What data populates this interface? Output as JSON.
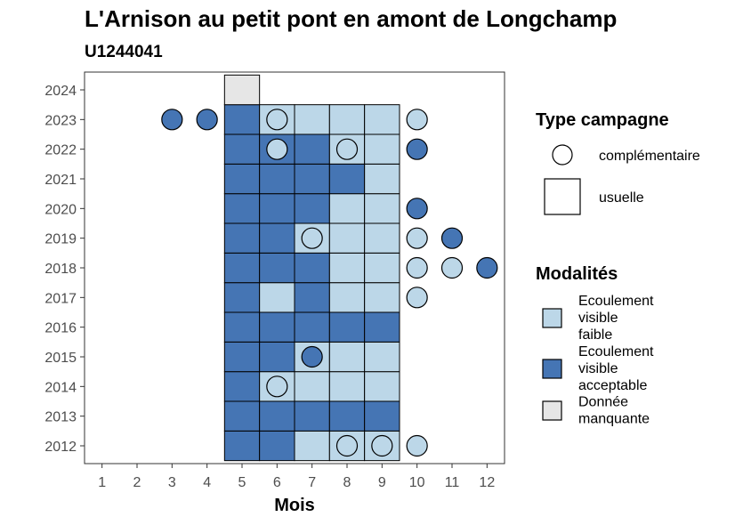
{
  "chart_data": {
    "type": "heatmap",
    "title": "L'Arnison au petit pont en amont de Longchamp",
    "subtitle": "U1244041",
    "xlabel": "Mois",
    "ylabel": "",
    "x_ticks": [
      "1",
      "2",
      "3",
      "4",
      "5",
      "6",
      "7",
      "8",
      "9",
      "10",
      "11",
      "12"
    ],
    "y_ticks": [
      "2012",
      "2013",
      "2014",
      "2015",
      "2016",
      "2017",
      "2018",
      "2019",
      "2020",
      "2021",
      "2022",
      "2023",
      "2024"
    ],
    "xlim": [
      0.5,
      12.5
    ],
    "ylim": [
      2011.4,
      2024.6
    ],
    "grid": false,
    "legend_position": "right",
    "colors": {
      "faible": "#bcd7e8",
      "acceptable": "#4575b4",
      "manquante": "#e6e6e6"
    },
    "legend_type": {
      "title": "Type campagne",
      "items": [
        {
          "label": "complémentaire",
          "shape": "circle"
        },
        {
          "label": "usuelle",
          "shape": "square"
        }
      ]
    },
    "legend_modalites": {
      "title": "Modalités",
      "items": [
        {
          "lines": [
            "Ecoulement",
            "visible",
            "faible"
          ],
          "key": "faible"
        },
        {
          "lines": [
            "Ecoulement",
            "visible",
            "acceptable"
          ],
          "key": "acceptable"
        },
        {
          "lines": [
            "Donnée",
            "manquante"
          ],
          "key": "manquante"
        }
      ]
    },
    "usuelle": [
      {
        "year": 2012,
        "months": [
          "acceptable",
          "acceptable",
          "faible",
          "faible",
          "faible"
        ]
      },
      {
        "year": 2013,
        "months": [
          "acceptable",
          "acceptable",
          "acceptable",
          "acceptable",
          "acceptable"
        ]
      },
      {
        "year": 2014,
        "months": [
          "acceptable",
          "faible",
          "faible",
          "faible",
          "faible"
        ]
      },
      {
        "year": 2015,
        "months": [
          "acceptable",
          "acceptable",
          "faible",
          "faible",
          "faible"
        ]
      },
      {
        "year": 2016,
        "months": [
          "acceptable",
          "acceptable",
          "acceptable",
          "acceptable",
          "acceptable"
        ]
      },
      {
        "year": 2017,
        "months": [
          "acceptable",
          "faible",
          "acceptable",
          "faible",
          "faible"
        ]
      },
      {
        "year": 2018,
        "months": [
          "acceptable",
          "acceptable",
          "acceptable",
          "faible",
          "faible"
        ]
      },
      {
        "year": 2019,
        "months": [
          "acceptable",
          "acceptable",
          "faible",
          "faible",
          "faible"
        ]
      },
      {
        "year": 2020,
        "months": [
          "acceptable",
          "acceptable",
          "acceptable",
          "faible",
          "faible"
        ]
      },
      {
        "year": 2021,
        "months": [
          "acceptable",
          "acceptable",
          "acceptable",
          "acceptable",
          "faible"
        ]
      },
      {
        "year": 2022,
        "months": [
          "acceptable",
          "acceptable",
          "acceptable",
          "faible",
          "faible"
        ]
      },
      {
        "year": 2023,
        "months": [
          "acceptable",
          "faible",
          "faible",
          "faible",
          "faible"
        ]
      },
      {
        "year": 2024,
        "months": [
          "manquante"
        ]
      }
    ],
    "usuelle_first_month": 5,
    "complementaire": [
      {
        "year": 2012,
        "month": 8,
        "value": "faible"
      },
      {
        "year": 2012,
        "month": 9,
        "value": "faible"
      },
      {
        "year": 2012,
        "month": 10,
        "value": "faible"
      },
      {
        "year": 2014,
        "month": 6,
        "value": "faible"
      },
      {
        "year": 2015,
        "month": 7,
        "value": "acceptable"
      },
      {
        "year": 2017,
        "month": 10,
        "value": "faible"
      },
      {
        "year": 2018,
        "month": 10,
        "value": "faible"
      },
      {
        "year": 2018,
        "month": 11,
        "value": "faible"
      },
      {
        "year": 2018,
        "month": 12,
        "value": "acceptable"
      },
      {
        "year": 2019,
        "month": 7,
        "value": "faible"
      },
      {
        "year": 2019,
        "month": 10,
        "value": "faible"
      },
      {
        "year": 2019,
        "month": 11,
        "value": "acceptable"
      },
      {
        "year": 2020,
        "month": 10,
        "value": "acceptable"
      },
      {
        "year": 2022,
        "month": 6,
        "value": "faible"
      },
      {
        "year": 2022,
        "month": 8,
        "value": "faible"
      },
      {
        "year": 2022,
        "month": 10,
        "value": "acceptable"
      },
      {
        "year": 2023,
        "month": 3,
        "value": "acceptable"
      },
      {
        "year": 2023,
        "month": 4,
        "value": "acceptable"
      },
      {
        "year": 2023,
        "month": 6,
        "value": "faible"
      },
      {
        "year": 2023,
        "month": 10,
        "value": "faible"
      }
    ]
  }
}
